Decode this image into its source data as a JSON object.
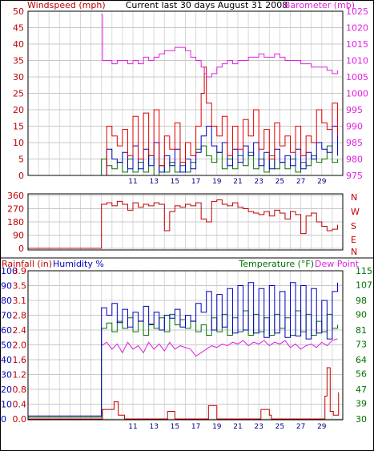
{
  "chart_data": [
    {
      "type": "line",
      "title": "Current last 30 days August 31 2008",
      "left_label": "Windspeed (mph)",
      "right_label": "Barometer (mb)",
      "x_ticks": [
        "11",
        "13",
        "15",
        "17",
        "19",
        "21",
        "23",
        "25",
        "27",
        "29"
      ],
      "y_left_ticks": [
        "0",
        "5",
        "10",
        "15",
        "20",
        "25",
        "30",
        "35",
        "40",
        "45",
        "50"
      ],
      "y_right_ticks": [
        "975",
        "980",
        "985",
        "990",
        "995",
        "1000",
        "1005",
        "1010",
        "1015",
        "1020",
        "1025"
      ],
      "y_left_range": [
        0,
        50
      ],
      "y_right_range": [
        975,
        1025
      ],
      "x_range": [
        1,
        31
      ],
      "grid": true,
      "colors": {
        "barometer": "#e020e0",
        "gust": "#e00000",
        "average": "#0000c0",
        "low": "#007000"
      },
      "series": [
        {
          "key": "barometer",
          "axis": "right",
          "x": [
            8,
            8.1,
            8.5,
            9,
            9.5,
            10,
            10.5,
            11,
            11.5,
            12,
            12.5,
            13,
            13.5,
            14,
            14.5,
            15,
            15.5,
            16,
            16.5,
            17,
            17.5,
            17.8,
            18,
            18.5,
            19,
            19.5,
            20,
            20.5,
            21,
            21.5,
            22,
            22.5,
            23,
            23.5,
            24,
            24.5,
            25,
            25.5,
            26,
            26.5,
            27,
            27.5,
            28,
            28.5,
            29,
            29.5,
            30,
            30.5
          ],
          "y": [
            1024,
            1010,
            1010,
            1009,
            1010,
            1010,
            1009,
            1010,
            1009,
            1011,
            1010,
            1011,
            1012,
            1013,
            1013,
            1014,
            1014,
            1013,
            1011,
            1010,
            1008,
            1006,
            1005,
            1006,
            1008,
            1009,
            1010,
            1009,
            1010,
            1010,
            1011,
            1011,
            1012,
            1011,
            1011,
            1012,
            1011,
            1010,
            1010,
            1010,
            1009,
            1009,
            1008,
            1008,
            1008,
            1007,
            1006,
            1007
          ]
        },
        {
          "key": "gust",
          "axis": "left",
          "x": [
            8,
            8.5,
            9,
            9.5,
            10,
            10.5,
            11,
            11.5,
            12,
            12.5,
            13,
            13.5,
            14,
            14.5,
            15,
            15.5,
            16,
            16.5,
            17,
            17.5,
            17.8,
            18,
            18.5,
            19,
            19.5,
            20,
            20.5,
            21,
            21.5,
            22,
            22.5,
            23,
            23.5,
            24,
            24.5,
            25,
            25.5,
            26,
            26.5,
            27,
            27.5,
            28,
            28.5,
            29,
            29.5,
            30,
            30.5
          ],
          "y": [
            0,
            15,
            12,
            9,
            14,
            6,
            18,
            5,
            19,
            6,
            20,
            3,
            12,
            8,
            16,
            4,
            10,
            6,
            15,
            25,
            33,
            22,
            15,
            12,
            18,
            6,
            15,
            8,
            17,
            12,
            20,
            8,
            14,
            5,
            16,
            9,
            12,
            7,
            15,
            6,
            12,
            10,
            20,
            16,
            14,
            22,
            12
          ]
        },
        {
          "key": "average",
          "axis": "left",
          "x": [
            8,
            8.5,
            9,
            9.5,
            10,
            10.5,
            11,
            11.5,
            12,
            12.5,
            13,
            13.5,
            14,
            14.5,
            15,
            15.5,
            16,
            16.5,
            17,
            17.5,
            18,
            18.5,
            19,
            19.5,
            20,
            20.5,
            21,
            21.5,
            22,
            22.5,
            23,
            23.5,
            24,
            24.5,
            25,
            25.5,
            26,
            26.5,
            27,
            27.5,
            28,
            28.5,
            29,
            29.5,
            30,
            30.5
          ],
          "y": [
            0,
            8,
            5,
            4,
            7,
            2,
            9,
            2,
            8,
            3,
            10,
            1,
            6,
            3,
            8,
            1,
            5,
            2,
            7,
            12,
            15,
            9,
            7,
            10,
            3,
            8,
            4,
            9,
            6,
            10,
            3,
            7,
            2,
            8,
            4,
            6,
            3,
            8,
            2,
            7,
            5,
            10,
            8,
            7,
            15,
            6
          ]
        },
        {
          "key": "low",
          "axis": "left",
          "x": [
            1,
            7.9,
            8,
            8.5,
            9,
            9.5,
            10,
            10.5,
            11,
            11.5,
            12,
            12.5,
            13,
            13.5,
            14,
            14.5,
            15,
            15.5,
            16,
            16.5,
            17,
            17.5,
            18,
            18.5,
            19,
            19.5,
            20,
            20.5,
            21,
            21.5,
            22,
            22.5,
            23,
            23.5,
            24,
            24.5,
            25,
            25.5,
            26,
            26.5,
            27,
            27.5,
            28,
            28.5,
            29,
            29.5,
            30,
            30.5
          ],
          "y": [
            0,
            0,
            5,
            3,
            2,
            4,
            1,
            5,
            1,
            4,
            1,
            6,
            0,
            3,
            1,
            4,
            1,
            3,
            1,
            4,
            8,
            9,
            6,
            4,
            7,
            2,
            5,
            2,
            6,
            3,
            7,
            2,
            5,
            1,
            6,
            2,
            4,
            2,
            5,
            1,
            4,
            3,
            6,
            4,
            5,
            9,
            4,
            5
          ]
        }
      ]
    },
    {
      "type": "line",
      "title": "",
      "y_left_ticks": [
        "0",
        "90",
        "180",
        "270",
        "360"
      ],
      "y_left_range": [
        0,
        360
      ],
      "right_letters": [
        "N",
        "W",
        "S",
        "E",
        "N"
      ],
      "x_range": [
        1,
        31
      ],
      "grid": true,
      "colors": {
        "direction": "#c00000"
      },
      "series": [
        {
          "key": "direction",
          "x": [
            1,
            7.9,
            8,
            8.5,
            9,
            9.5,
            10,
            10.5,
            11,
            11.5,
            12,
            12.5,
            13,
            13.5,
            14,
            14.5,
            15,
            15.5,
            16,
            16.5,
            17,
            17.5,
            18,
            18.5,
            19,
            19.5,
            20,
            20.5,
            21,
            21.5,
            22,
            22.5,
            23,
            23.5,
            24,
            24.5,
            25,
            25.5,
            26,
            26.5,
            27,
            27.5,
            28,
            28.5,
            29,
            29.5,
            30,
            30.5
          ],
          "y": [
            0,
            0,
            300,
            310,
            290,
            320,
            300,
            260,
            310,
            280,
            300,
            290,
            310,
            300,
            120,
            250,
            290,
            280,
            300,
            290,
            310,
            200,
            180,
            320,
            330,
            300,
            290,
            310,
            280,
            270,
            250,
            240,
            230,
            250,
            220,
            260,
            240,
            200,
            250,
            230,
            100,
            220,
            240,
            180,
            150,
            120,
            130,
            160
          ]
        }
      ]
    },
    {
      "type": "line",
      "title": "",
      "labels": [
        "Rainfall (in)",
        "Humidity %",
        "Temperature (°F)",
        "Dew Point"
      ],
      "y_rain_ticks": [
        "0.0",
        "0.4",
        "0.8",
        "1.2",
        "1.6",
        "2.0",
        "2.4",
        "2.8",
        "3.1",
        "3.5",
        "3.9"
      ],
      "y_humidity_ticks": [
        "0",
        "10",
        "20",
        "30",
        "40",
        "50",
        "60",
        "70",
        "80",
        "90",
        "100"
      ],
      "y_temp_ticks": [
        "30",
        "39",
        "47",
        "56",
        "64",
        "73",
        "81",
        "90",
        "98",
        "107",
        "115"
      ],
      "y_humidity_range": [
        0,
        100
      ],
      "y_temp_range": [
        30,
        115
      ],
      "y_rain_range": [
        0,
        3.9
      ],
      "x_range": [
        1,
        31
      ],
      "grid": true,
      "colors": {
        "humidity": "#0000c0",
        "temperature": "#007000",
        "dewpoint": "#e020e0",
        "rainfall": "#c00000"
      },
      "series": [
        {
          "key": "humidity",
          "axis": "humidity",
          "x": [
            1,
            7.9,
            8,
            8.5,
            9,
            9.5,
            10,
            10.5,
            11,
            11.5,
            12,
            12.5,
            13,
            13.5,
            14,
            14.5,
            15,
            15.5,
            16,
            16.5,
            17,
            17.5,
            18,
            18.5,
            19,
            19.5,
            20,
            20.5,
            21,
            21.5,
            22,
            22.5,
            23,
            23.5,
            24,
            24.5,
            25,
            25.5,
            26,
            26.5,
            27,
            27.5,
            28,
            28.5,
            29,
            29.5,
            30,
            30.5
          ],
          "y": [
            2,
            2,
            75,
            70,
            78,
            65,
            74,
            62,
            72,
            66,
            76,
            64,
            72,
            60,
            70,
            68,
            74,
            62,
            70,
            66,
            78,
            72,
            86,
            60,
            84,
            62,
            88,
            58,
            90,
            60,
            92,
            58,
            88,
            55,
            90,
            58,
            86,
            55,
            92,
            56,
            90,
            54,
            88,
            58,
            80,
            54,
            86,
            92
          ]
        },
        {
          "key": "temperature",
          "axis": "temp",
          "x": [
            1,
            7.9,
            8,
            8.5,
            9,
            9.5,
            10,
            10.5,
            11,
            11.5,
            12,
            12.5,
            13,
            13.5,
            14,
            14.5,
            15,
            15.5,
            16,
            16.5,
            17,
            17.5,
            18,
            18.5,
            19,
            19.5,
            20,
            20.5,
            21,
            21.5,
            22,
            22.5,
            23,
            23.5,
            24,
            24.5,
            25,
            25.5,
            26,
            26.5,
            27,
            27.5,
            28,
            28.5,
            29,
            29.5,
            30,
            30.5
          ],
          "y": [
            31,
            31,
            82,
            85,
            80,
            86,
            82,
            88,
            80,
            86,
            78,
            84,
            82,
            88,
            80,
            90,
            84,
            87,
            82,
            86,
            80,
            84,
            78,
            88,
            80,
            90,
            78,
            88,
            80,
            92,
            78,
            90,
            80,
            88,
            78,
            90,
            82,
            88,
            78,
            92,
            80,
            90,
            78,
            86,
            80,
            90,
            82,
            84
          ]
        },
        {
          "key": "dewpoint",
          "axis": "temp",
          "x": [
            8,
            8.5,
            9,
            9.5,
            10,
            10.5,
            11,
            11.5,
            12,
            12.5,
            13,
            13.5,
            14,
            14.5,
            15,
            15.5,
            16,
            16.5,
            17,
            17.5,
            18,
            18.5,
            19,
            19.5,
            20,
            20.5,
            21,
            21.5,
            22,
            22.5,
            23,
            23.5,
            24,
            24.5,
            25,
            25.5,
            26,
            26.5,
            27,
            27.5,
            28,
            28.5,
            29,
            29.5,
            30,
            30.5
          ],
          "y": [
            72,
            74,
            70,
            73,
            68,
            74,
            70,
            72,
            68,
            74,
            70,
            73,
            69,
            74,
            70,
            72,
            71,
            70,
            66,
            68,
            70,
            72,
            71,
            73,
            72,
            74,
            73,
            75,
            72,
            74,
            73,
            75,
            72,
            74,
            73,
            75,
            71,
            73,
            70,
            72,
            73,
            71,
            74,
            72,
            75,
            76
          ]
        },
        {
          "key": "rainfall",
          "axis": "rain",
          "x": [
            1,
            8,
            8.1,
            9,
            9.2,
            9.5,
            9.6,
            10,
            10.2,
            11,
            14,
            14.3,
            15,
            18,
            18.2,
            18.5,
            19,
            23,
            23.2,
            23.8,
            24,
            24.2,
            29,
            29.3,
            29.5,
            29.8,
            30,
            30.1,
            30.5,
            30.6
          ],
          "y": [
            0,
            0,
            0.25,
            0.25,
            0.45,
            0.45,
            0.1,
            0.1,
            0,
            0,
            0,
            0.2,
            0,
            0,
            0.35,
            0.35,
            0,
            0,
            0.25,
            0.25,
            0.1,
            0,
            0,
            0.6,
            1.35,
            0.2,
            0.2,
            0.1,
            0.1,
            0.7
          ]
        }
      ]
    }
  ]
}
